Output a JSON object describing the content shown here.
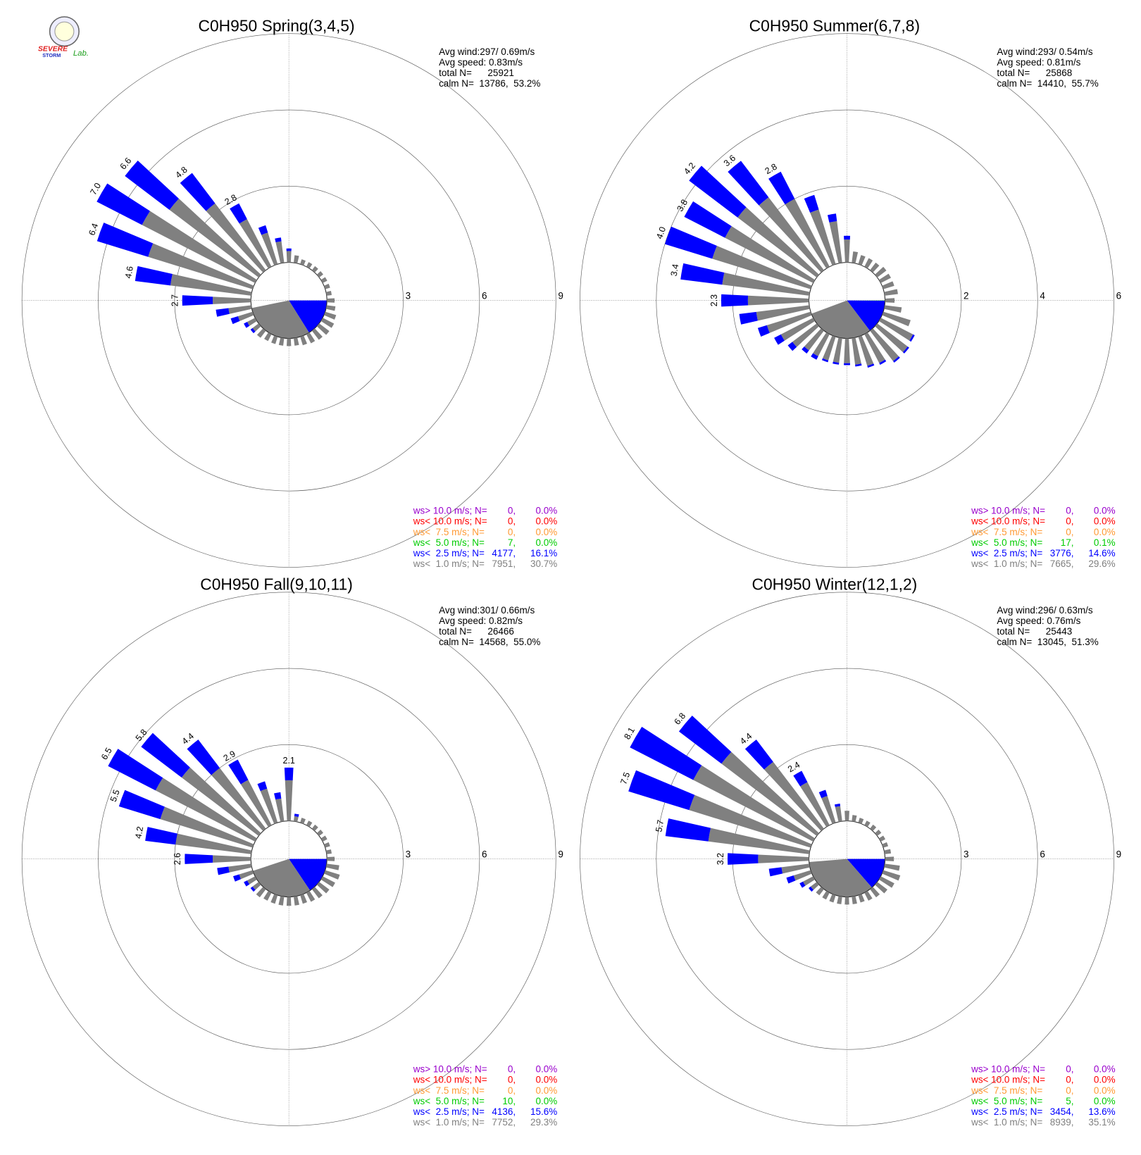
{
  "logo": [
    "SEVERE",
    "STORM",
    "Lab."
  ],
  "chart_data": [
    {
      "type": "windrose",
      "title": "C0H950 Spring(3,4,5)",
      "stats": [
        "Avg wind:297/ 0.69m/s",
        "Avg speed: 0.83m/s",
        "total N=      25921",
        "calm N=  13786,  53.2%"
      ],
      "directions": [
        0,
        10,
        20,
        30,
        40,
        50,
        60,
        70,
        80,
        90,
        100,
        110,
        120,
        130,
        140,
        150,
        160,
        170,
        180,
        190,
        200,
        210,
        220,
        230,
        240,
        250,
        260,
        270,
        280,
        290,
        300,
        310,
        320,
        330,
        340,
        350
      ],
      "rlim": [
        0,
        9
      ],
      "rticks": [
        3,
        6,
        9
      ],
      "series": [
        {
          "name": "ws> 10.0 m/s; N=",
          "color": "#9900cc",
          "n": 0,
          "n_label": "0,",
          "pct": 0.0,
          "pct_label": "0.0%"
        },
        {
          "name": "ws< 10.0 m/s; N=",
          "color": "#ff0000",
          "n": 0,
          "n_label": "0,",
          "pct": 0.0,
          "pct_label": "0.0%"
        },
        {
          "name": "ws<  7.5 m/s; N=",
          "color": "#ff9933",
          "n": 0,
          "n_label": "0,",
          "pct": 0.0,
          "pct_label": "0.0%"
        },
        {
          "name": "ws<  5.0 m/s; N=",
          "color": "#00cc00",
          "n": 7,
          "n_label": "7,",
          "pct": 0.0,
          "pct_label": "0.0%"
        },
        {
          "name": "ws<  2.5 m/s; N=",
          "color": "#0000ff",
          "n": 4177,
          "n_label": "4177,",
          "pct": 16.1,
          "pct_label": "16.1%",
          "values": [
            0.1,
            0,
            0,
            0,
            0,
            0,
            0,
            0,
            0,
            0,
            0,
            0,
            0,
            0,
            0,
            0,
            0,
            0,
            0,
            0,
            0,
            0,
            0,
            0.1,
            0.15,
            0.3,
            0.5,
            1.2,
            1.4,
            2.1,
            2.0,
            2.2,
            1.5,
            0.7,
            0.3,
            0.15
          ]
        },
        {
          "name": "ws<  1.0 m/s; N=",
          "color": "#808080",
          "n": 7951,
          "n_label": "7951,",
          "pct": 30.7,
          "pct_label": "30.7%",
          "values": [
            0.45,
            0.3,
            0.2,
            0.2,
            0.2,
            0.2,
            0.2,
            0.2,
            0.2,
            0.3,
            0.35,
            0.45,
            0.5,
            0.5,
            0.45,
            0.4,
            0.35,
            0.3,
            0.3,
            0.3,
            0.3,
            0.3,
            0.35,
            0.3,
            0.35,
            0.6,
            0.9,
            1.5,
            3.2,
            4.3,
            5.0,
            4.4,
            3.3,
            2.1,
            1.3,
            0.85
          ]
        }
      ],
      "bar_labels": [
        null,
        null,
        null,
        null,
        null,
        null,
        null,
        null,
        null,
        null,
        null,
        null,
        null,
        null,
        null,
        null,
        null,
        null,
        null,
        null,
        null,
        null,
        null,
        null,
        null,
        null,
        null,
        "2.7",
        "4.6",
        "6.4",
        "7.0",
        "6.6",
        "4.8",
        "2.8",
        null,
        null
      ]
    },
    {
      "type": "windrose",
      "title": "C0H950 Summer(6,7,8)",
      "stats": [
        "Avg wind:293/ 0.54m/s",
        "Avg speed: 0.81m/s",
        "total N=      25868",
        "calm N=  14410,  55.7%"
      ],
      "directions": [
        0,
        10,
        20,
        30,
        40,
        50,
        60,
        70,
        80,
        90,
        100,
        110,
        120,
        130,
        140,
        150,
        160,
        170,
        180,
        190,
        200,
        210,
        220,
        230,
        240,
        250,
        260,
        270,
        280,
        290,
        300,
        310,
        320,
        330,
        340,
        350
      ],
      "rlim": [
        0,
        6
      ],
      "rticks": [
        2,
        4,
        6
      ],
      "series": [
        {
          "name": "ws> 10.0 m/s; N=",
          "color": "#9900cc",
          "n": 0,
          "n_label": "0,",
          "pct": 0.0,
          "pct_label": "0.0%"
        },
        {
          "name": "ws< 10.0 m/s; N=",
          "color": "#ff0000",
          "n": 0,
          "n_label": "0,",
          "pct": 0.0,
          "pct_label": "0.0%"
        },
        {
          "name": "ws<  7.5 m/s; N=",
          "color": "#ff9933",
          "n": 0,
          "n_label": "0,",
          "pct": 0.0,
          "pct_label": "0.0%"
        },
        {
          "name": "ws<  5.0 m/s; N=",
          "color": "#00cc00",
          "n": 17,
          "n_label": "17,",
          "pct": 0.1,
          "pct_label": "0.1%"
        },
        {
          "name": "ws<  2.5 m/s; N=",
          "color": "#0000ff",
          "n": 3776,
          "n_label": "3776,",
          "pct": 14.6,
          "pct_label": "14.6%",
          "values": [
            0.1,
            0,
            0,
            0,
            0,
            0,
            0,
            0,
            0,
            0,
            0,
            0,
            0.05,
            0.05,
            0.05,
            0.05,
            0.05,
            0.05,
            0.05,
            0.05,
            0.05,
            0.1,
            0.1,
            0.15,
            0.2,
            0.25,
            0.45,
            0.7,
            1.1,
            1.3,
            1.2,
            1.6,
            1.2,
            0.8,
            0.4,
            0.2
          ]
        },
        {
          "name": "ws<  1.0 m/s; N=",
          "color": "#808080",
          "n": 7665,
          "n_label": "7665,",
          "pct": 29.6,
          "pct_label": "29.6%",
          "values": [
            0.6,
            0.3,
            0.25,
            0.25,
            0.25,
            0.3,
            0.3,
            0.3,
            0.35,
            0.25,
            0.45,
            0.75,
            0.95,
            1.0,
            1.0,
            0.85,
            0.8,
            0.7,
            0.65,
            0.65,
            0.65,
            0.65,
            0.65,
            0.8,
            0.95,
            1.2,
            1.4,
            1.6,
            2.3,
            2.7,
            2.6,
            2.6,
            2.4,
            2.0,
            1.5,
            1.1
          ]
        }
      ],
      "bar_labels": [
        null,
        null,
        null,
        null,
        null,
        null,
        null,
        null,
        null,
        null,
        null,
        null,
        null,
        null,
        null,
        null,
        null,
        null,
        null,
        null,
        null,
        null,
        null,
        null,
        null,
        null,
        null,
        "2.3",
        "3.4",
        "4.0",
        "3.8",
        "4.2",
        "3.6",
        "2.8",
        null,
        null
      ]
    },
    {
      "type": "windrose",
      "title": "C0H950 Fall(9,10,11)",
      "stats": [
        "Avg wind:301/ 0.66m/s",
        "Avg speed: 0.82m/s",
        "total N=      26466",
        "calm N=  14568,  55.0%"
      ],
      "directions": [
        0,
        10,
        20,
        30,
        40,
        50,
        60,
        70,
        80,
        90,
        100,
        110,
        120,
        130,
        140,
        150,
        160,
        170,
        180,
        190,
        200,
        210,
        220,
        230,
        240,
        250,
        260,
        270,
        280,
        290,
        300,
        310,
        320,
        330,
        340,
        350
      ],
      "rlim": [
        0,
        9
      ],
      "rticks": [
        3,
        6,
        9
      ],
      "series": [
        {
          "name": "ws> 10.0 m/s; N=",
          "color": "#9900cc",
          "n": 0,
          "n_label": "0,",
          "pct": 0.0,
          "pct_label": "0.0%"
        },
        {
          "name": "ws< 10.0 m/s; N=",
          "color": "#ff0000",
          "n": 0,
          "n_label": "0,",
          "pct": 0.0,
          "pct_label": "0.0%"
        },
        {
          "name": "ws<  7.5 m/s; N=",
          "color": "#ff9933",
          "n": 0,
          "n_label": "0,",
          "pct": 0.0,
          "pct_label": "0.0%"
        },
        {
          "name": "ws<  5.0 m/s; N=",
          "color": "#00cc00",
          "n": 10,
          "n_label": "10,",
          "pct": 0.0,
          "pct_label": "0.0%"
        },
        {
          "name": "ws<  2.5 m/s; N=",
          "color": "#0000ff",
          "n": 4136,
          "n_label": "4136,",
          "pct": 15.6,
          "pct_label": "15.6%",
          "values": [
            0.5,
            0.1,
            0,
            0,
            0,
            0,
            0,
            0,
            0,
            0,
            0,
            0,
            0,
            0,
            0,
            0,
            0,
            0,
            0,
            0,
            0,
            0,
            0,
            0.1,
            0.15,
            0.25,
            0.45,
            1.1,
            1.2,
            1.7,
            2.1,
            2.0,
            1.4,
            0.9,
            0.3,
            0.25
          ]
        },
        {
          "name": "ws<  1.0 m/s; N=",
          "color": "#808080",
          "n": 7752,
          "n_label": "7752,",
          "pct": 29.3,
          "pct_label": "29.3%",
          "values": [
            1.6,
            0.2,
            0.2,
            0.2,
            0.2,
            0.2,
            0.2,
            0.2,
            0.2,
            0.3,
            0.5,
            0.6,
            0.55,
            0.5,
            0.45,
            0.4,
            0.35,
            0.35,
            0.35,
            0.35,
            0.35,
            0.35,
            0.4,
            0.3,
            0.35,
            0.55,
            0.9,
            1.5,
            3.0,
            3.8,
            4.4,
            3.8,
            3.0,
            2.0,
            1.4,
            0.9
          ]
        }
      ],
      "bar_labels": [
        "2.1",
        null,
        null,
        null,
        null,
        null,
        null,
        null,
        null,
        null,
        null,
        null,
        null,
        null,
        null,
        null,
        null,
        null,
        null,
        null,
        null,
        null,
        null,
        null,
        null,
        null,
        null,
        "2.6",
        "4.2",
        "5.5",
        "6.5",
        "5.8",
        "4.4",
        "2.9",
        null,
        null
      ]
    },
    {
      "type": "windrose",
      "title": "C0H950 Winter(12,1,2)",
      "stats": [
        "Avg wind:296/ 0.63m/s",
        "Avg speed: 0.76m/s",
        "total N=      25443",
        "calm N=  13045,  51.3%"
      ],
      "directions": [
        0,
        10,
        20,
        30,
        40,
        50,
        60,
        70,
        80,
        90,
        100,
        110,
        120,
        130,
        140,
        150,
        160,
        170,
        180,
        190,
        200,
        210,
        220,
        230,
        240,
        250,
        260,
        270,
        280,
        290,
        300,
        310,
        320,
        330,
        340,
        350
      ],
      "rlim": [
        0,
        9
      ],
      "rticks": [
        3,
        6,
        9
      ],
      "series": [
        {
          "name": "ws> 10.0 m/s; N=",
          "color": "#9900cc",
          "n": 0,
          "n_label": "0,",
          "pct": 0.0,
          "pct_label": "0.0%"
        },
        {
          "name": "ws< 10.0 m/s; N=",
          "color": "#ff0000",
          "n": 0,
          "n_label": "0,",
          "pct": 0.0,
          "pct_label": "0.0%"
        },
        {
          "name": "ws<  7.5 m/s; N=",
          "color": "#ff9933",
          "n": 0,
          "n_label": "0,",
          "pct": 0.0,
          "pct_label": "0.0%"
        },
        {
          "name": "ws<  5.0 m/s; N=",
          "color": "#00cc00",
          "n": 5,
          "n_label": "5,",
          "pct": 0.0,
          "pct_label": "0.0%"
        },
        {
          "name": "ws<  2.5 m/s; N=",
          "color": "#0000ff",
          "n": 3454,
          "n_label": "3454,",
          "pct": 13.6,
          "pct_label": "13.6%",
          "values": [
            0,
            0,
            0,
            0,
            0,
            0,
            0,
            0,
            0,
            0,
            0,
            0,
            0,
            0,
            0,
            0,
            0,
            0,
            0,
            0,
            0,
            0,
            0,
            0.1,
            0.15,
            0.3,
            0.5,
            1.2,
            1.7,
            2.5,
            2.8,
            2.1,
            1.1,
            0.5,
            0.25,
            0.1
          ]
        },
        {
          "name": "ws<  1.0 m/s; N=",
          "color": "#808080",
          "n": 8939,
          "n_label": "8939,",
          "pct": 35.1,
          "pct_label": "35.1%",
          "values": [
            0.4,
            0.25,
            0.2,
            0.2,
            0.2,
            0.2,
            0.2,
            0.2,
            0.25,
            0.35,
            0.6,
            0.7,
            0.6,
            0.5,
            0.4,
            0.35,
            0.3,
            0.3,
            0.3,
            0.3,
            0.3,
            0.3,
            0.3,
            0.3,
            0.45,
            0.7,
            1.1,
            2.0,
            4.0,
            5.0,
            5.3,
            4.7,
            3.3,
            1.9,
            1.1,
            0.6
          ]
        }
      ],
      "bar_labels": [
        null,
        null,
        null,
        null,
        null,
        null,
        null,
        null,
        null,
        null,
        null,
        null,
        null,
        null,
        null,
        null,
        null,
        null,
        null,
        null,
        null,
        null,
        null,
        null,
        null,
        null,
        null,
        "3.2",
        "5.7",
        "7.5",
        "8.1",
        "6.8",
        "4.4",
        "2.4",
        null,
        null
      ]
    }
  ]
}
